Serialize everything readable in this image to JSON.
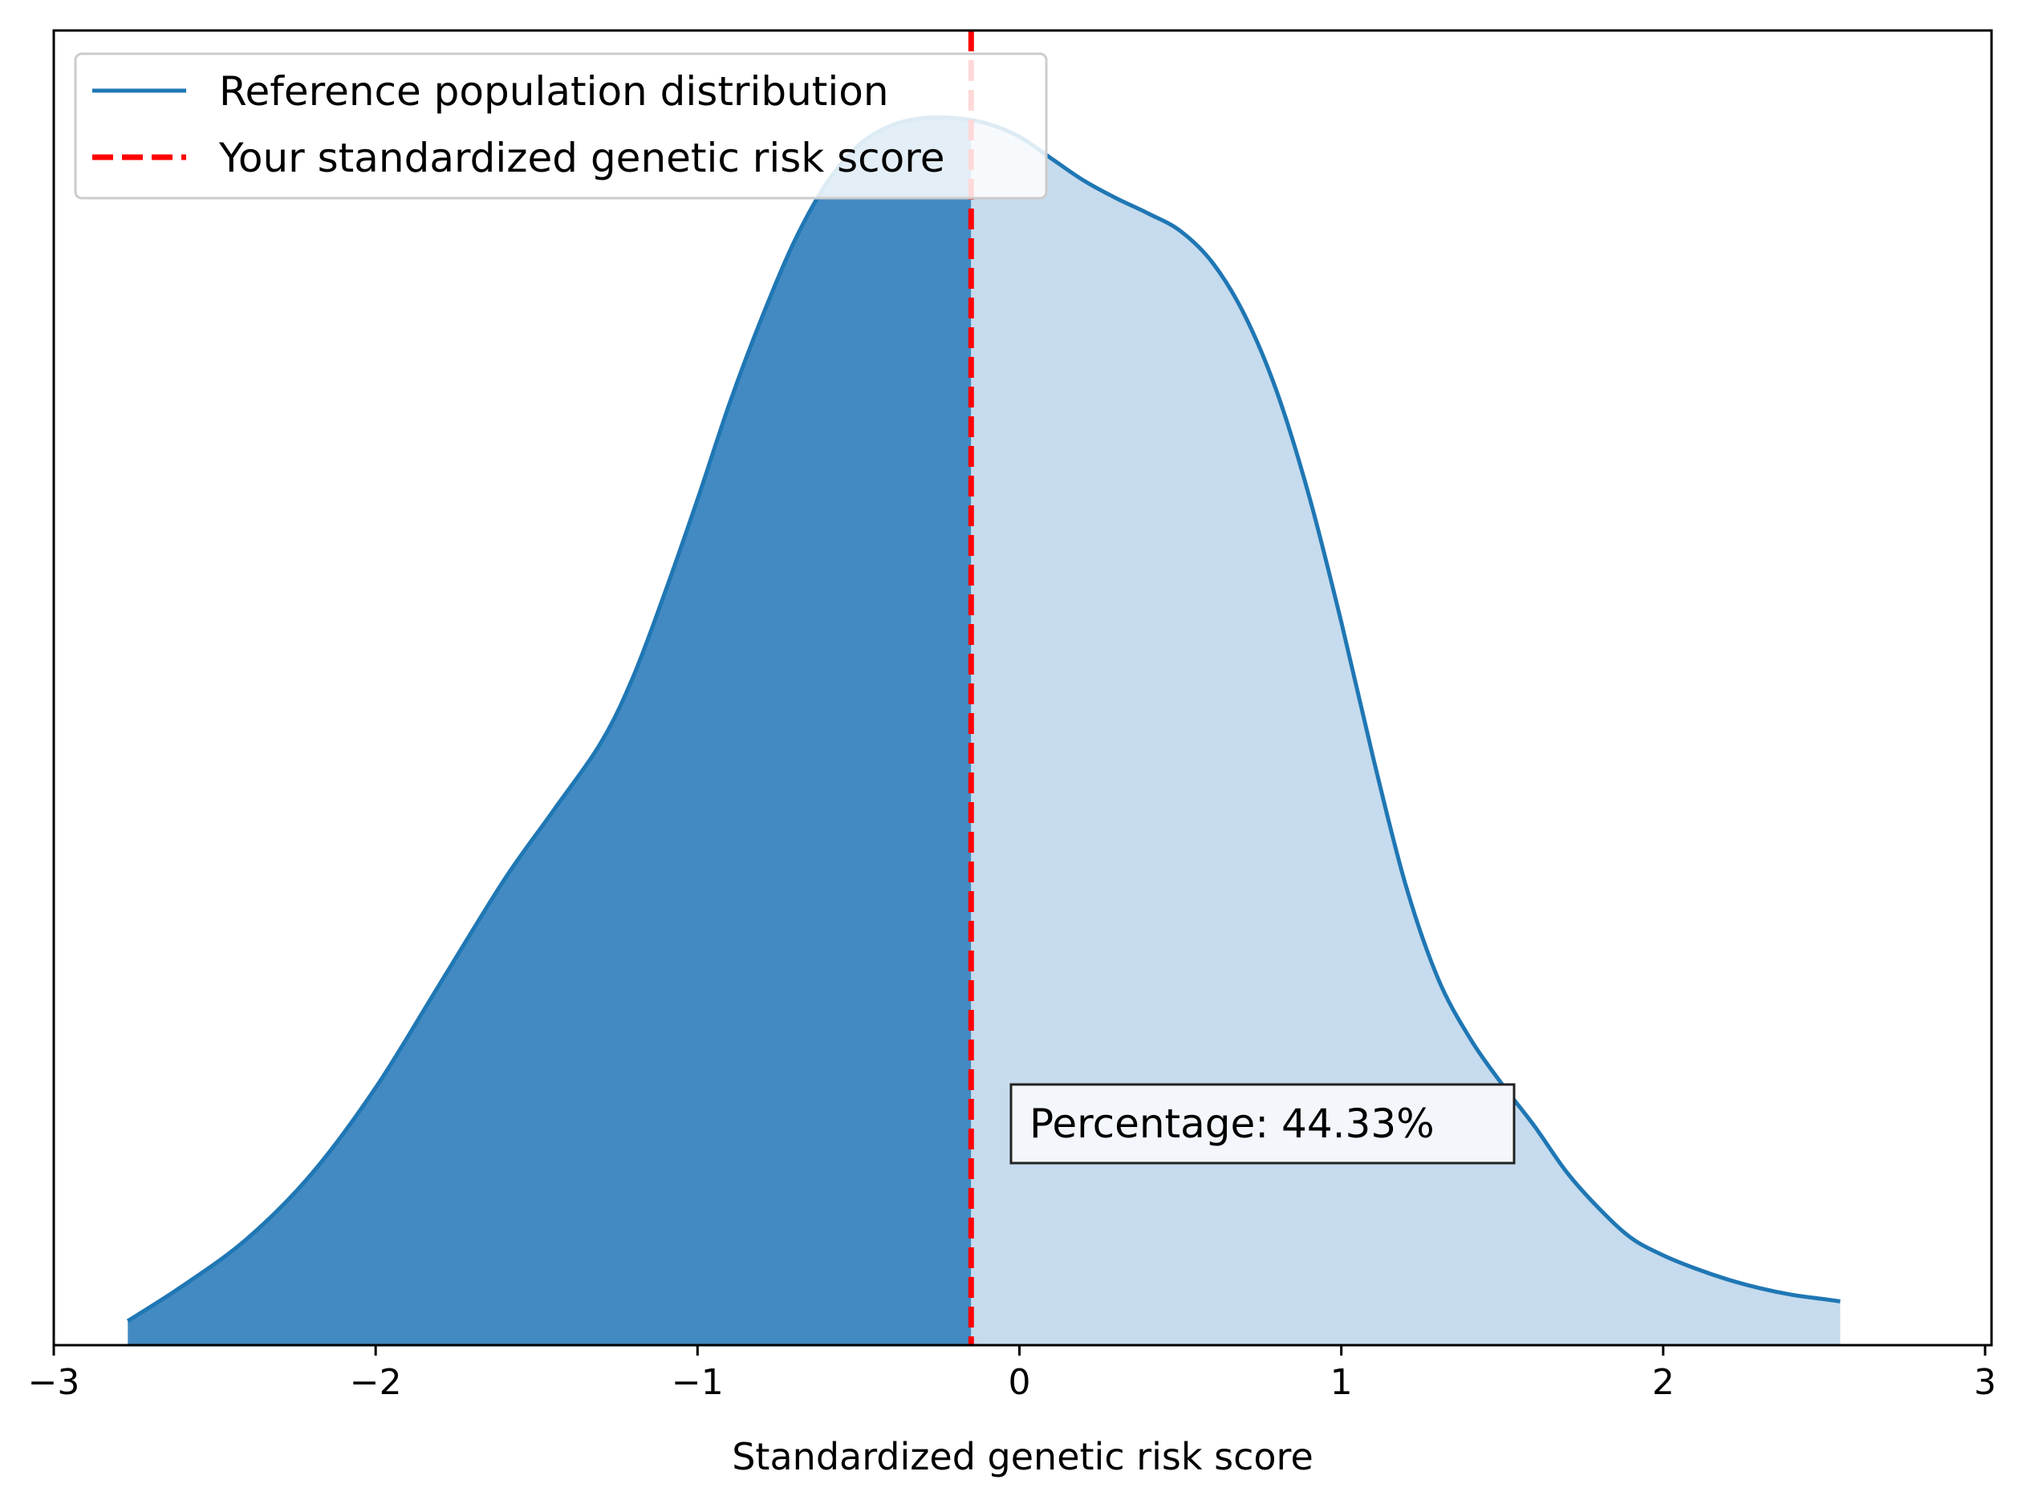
{
  "chart_data": {
    "type": "area",
    "xlabel": "Standardized genetic risk score",
    "ylabel": "",
    "xlim": [
      -3.0,
      3.02
    ],
    "ylim": [
      0,
      1.0
    ],
    "xticks": [
      {
        "value": -3,
        "label": "−3"
      },
      {
        "value": -2,
        "label": "−2"
      },
      {
        "value": -1,
        "label": "−1"
      },
      {
        "value": 0,
        "label": "0"
      },
      {
        "value": 1,
        "label": "1"
      },
      {
        "value": 2,
        "label": "2"
      },
      {
        "value": 3,
        "label": "3"
      }
    ],
    "y_axis_ticks_shown": false,
    "grid": false,
    "legend_placement": "top-left",
    "series": [
      {
        "name": "Reference population distribution",
        "kind": "density-curve",
        "color": "#1f77b4",
        "x": [
          -2.77,
          -2.6,
          -2.4,
          -2.2,
          -2.0,
          -1.8,
          -1.6,
          -1.45,
          -1.3,
          -1.2,
          -1.1,
          -1.0,
          -0.9,
          -0.8,
          -0.7,
          -0.6,
          -0.5,
          -0.4,
          -0.3,
          -0.2,
          -0.1,
          0.0,
          0.1,
          0.2,
          0.3,
          0.4,
          0.5,
          0.6,
          0.7,
          0.8,
          0.9,
          1.0,
          1.1,
          1.2,
          1.3,
          1.4,
          1.5,
          1.6,
          1.7,
          1.8,
          1.9,
          2.0,
          2.1,
          2.2,
          2.3,
          2.4,
          2.5,
          2.55
        ],
        "y": [
          0.022,
          0.054,
          0.097,
          0.156,
          0.235,
          0.33,
          0.425,
          0.487,
          0.55,
          0.61,
          0.688,
          0.772,
          0.86,
          0.938,
          1.007,
          1.06,
          1.095,
          1.113,
          1.12,
          1.12,
          1.115,
          1.103,
          1.083,
          1.063,
          1.047,
          1.033,
          1.017,
          0.988,
          0.94,
          0.87,
          0.775,
          0.66,
          0.535,
          0.42,
          0.335,
          0.28,
          0.238,
          0.2,
          0.158,
          0.125,
          0.098,
          0.082,
          0.07,
          0.06,
          0.052,
          0.046,
          0.042,
          0.04
        ]
      },
      {
        "name": "Your standardized genetic risk score",
        "kind": "vertical-line",
        "color": "#ff0000",
        "x": -0.15
      }
    ],
    "fill_below_score_color": "#2f7dbb",
    "fill_above_score_color": "#c6dbed",
    "annotation": {
      "text": "Percentage: 44.33%",
      "x": 0.0,
      "y": 0.22
    }
  }
}
